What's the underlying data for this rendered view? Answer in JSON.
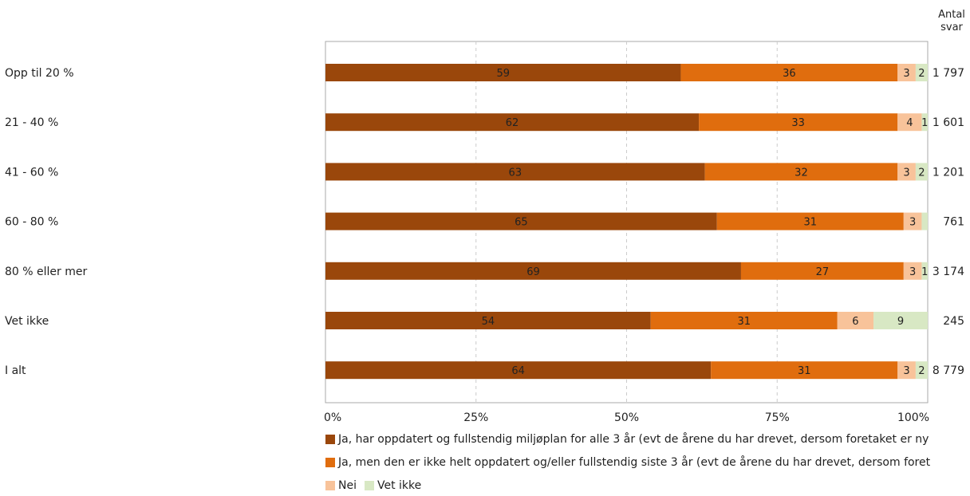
{
  "chart_data": {
    "type": "bar",
    "orientation": "horizontal",
    "stacked": true,
    "count_header": [
      "Antal",
      "svar"
    ],
    "categories": [
      "Opp til 20 %",
      "21 - 40 %",
      "41 - 60 %",
      "60 - 80 %",
      "80 % eller mer",
      "Vet ikke",
      "I alt"
    ],
    "counts": [
      "1 797",
      "1 601",
      "1 201",
      "761",
      "3 174",
      "245",
      "8 779"
    ],
    "series": [
      {
        "name": "Ja, har oppdatert og fullstendig miljøplan for alle 3 år (evt de årene du har drevet, dersom foretaket er ny",
        "color": "#9a470b",
        "values": [
          59,
          62,
          63,
          65,
          69,
          54,
          64
        ]
      },
      {
        "name": "Ja, men den er ikke helt oppdatert og/eller fullstendig siste 3 år (evt de årene du har drevet, dersom foret",
        "color": "#e06d0e",
        "values": [
          36,
          33,
          32,
          31,
          27,
          31,
          31
        ]
      },
      {
        "name": "Nei",
        "color": "#f8c39a",
        "values": [
          3,
          4,
          3,
          3,
          3,
          6,
          3
        ]
      },
      {
        "name": "Vet ikke",
        "color": "#d8e8c4",
        "values": [
          2,
          1,
          2,
          1,
          1,
          9,
          2
        ]
      }
    ],
    "segment_labels": [
      [
        "59",
        "36",
        "3",
        "2"
      ],
      [
        "62",
        "33",
        "4",
        "1"
      ],
      [
        "63",
        "32",
        "3",
        "2"
      ],
      [
        "65",
        "31",
        "3",
        ""
      ],
      [
        "69",
        "27",
        "3",
        "1"
      ],
      [
        "54",
        "31",
        "6",
        "9"
      ],
      [
        "64",
        "31",
        "3",
        "2"
      ]
    ],
    "x_ticks": [
      "0%",
      "25%",
      "50%",
      "75%",
      "100%"
    ],
    "xlim": [
      0,
      100
    ],
    "grid": "vertical-dashed",
    "legend_position": "bottom"
  }
}
